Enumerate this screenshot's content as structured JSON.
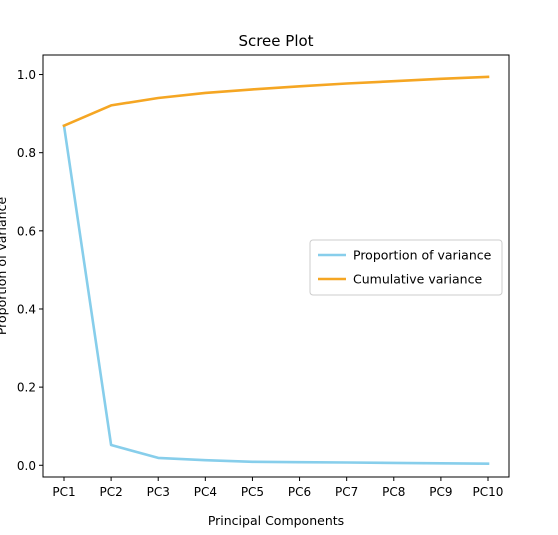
{
  "chart_data": {
    "type": "line",
    "title": "Scree Plot",
    "xlabel": "Principal Components",
    "ylabel": "Proportion of variance",
    "categories": [
      "PC1",
      "PC2",
      "PC3",
      "PC4",
      "PC5",
      "PC6",
      "PC7",
      "PC8",
      "PC9",
      "PC10"
    ],
    "ylim": [
      -0.03,
      1.05
    ],
    "yticks": [
      0.0,
      0.2,
      0.4,
      0.6,
      0.8,
      1.0
    ],
    "ytick_labels": [
      "0.0",
      "0.2",
      "0.4",
      "0.6",
      "0.8",
      "1.0"
    ],
    "grid": false,
    "legend_position": "center-right",
    "series": [
      {
        "name": "Proportion of variance",
        "color": "#87ceeb",
        "values": [
          0.869,
          0.052,
          0.019,
          0.013,
          0.009,
          0.008,
          0.007,
          0.006,
          0.005,
          0.004
        ]
      },
      {
        "name": "Cumulative variance",
        "color": "#f5a623",
        "values": [
          0.869,
          0.921,
          0.94,
          0.953,
          0.962,
          0.97,
          0.977,
          0.983,
          0.989,
          0.994
        ]
      }
    ]
  }
}
